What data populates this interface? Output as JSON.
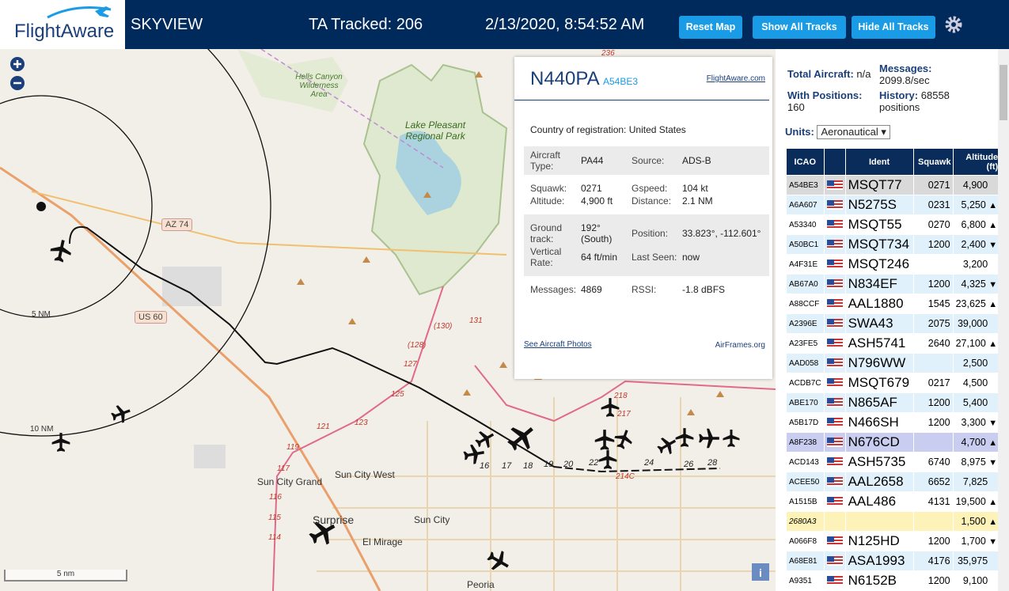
{
  "header": {
    "logo": "FlightAware",
    "title": "SKYVIEW",
    "tracked": "TA Tracked: 206",
    "datetime": "2/13/2020, 8:54:52 AM",
    "buttons": [
      "Reset Map",
      "Show All Tracks",
      "Hide All Tracks"
    ]
  },
  "map": {
    "labels": [
      "Hells Canyon Wilderness Area",
      "Lake Pleasant Regional Park",
      "AZ 74",
      "US 60",
      "5 NM",
      "10 NM",
      "Sun City Grand",
      "Sun City West",
      "Sun City",
      "Surprise",
      "El Mirage",
      "Peoria"
    ],
    "roads": [
      "236",
      "(130)",
      "131",
      "(128)",
      "127",
      "125",
      "123",
      "121",
      "119",
      "117",
      "116",
      "115",
      "114",
      "218",
      "217",
      "16",
      "17",
      "18",
      "19",
      "20",
      "22",
      "24",
      "26",
      "28",
      "214C"
    ],
    "scale": "5 nm"
  },
  "popup": {
    "callsign": "N440PA",
    "icao": "A54BE3",
    "link": "FlightAware.com",
    "country_label": "Country of registration:",
    "country": "United States",
    "sections": [
      [
        [
          {
            "label": "Aircraft Type:",
            "value": "PA44"
          },
          {
            "label": "Source:",
            "value": "ADS-B"
          }
        ]
      ],
      [
        [
          {
            "label": "Squawk:",
            "value": "0271"
          },
          {
            "label": "Gspeed:",
            "value": "104 kt"
          }
        ],
        [
          {
            "label": "Altitude:",
            "value": "4,900 ft"
          },
          {
            "label": "Distance:",
            "value": "2.1 NM"
          }
        ]
      ],
      [
        [
          {
            "label": "Ground track:",
            "value": "192° (South)"
          },
          {
            "label": "Position:",
            "value": "33.823°, -112.601°"
          }
        ],
        [
          {
            "label": "Vertical Rate:",
            "value": "64 ft/min"
          },
          {
            "label": "Last Seen:",
            "value": "now"
          }
        ]
      ],
      [
        [
          {
            "label": "Messages:",
            "value": "4869"
          },
          {
            "label": "RSSI:",
            "value": "-1.8 dBFS"
          }
        ]
      ]
    ],
    "photos_link": "See Aircraft Photos",
    "airframes_link": "AirFrames.org"
  },
  "stats": {
    "total_label": "Total Aircraft:",
    "total": "n/a",
    "messages_label": "Messages:",
    "messages": "2099.8/sec",
    "positions_label": "With Positions:",
    "positions": "160",
    "history_label": "History:",
    "history": "68558 positions",
    "units_label": "Units:",
    "units": "Aeronautical"
  },
  "table": {
    "headers": [
      "ICAO",
      "Ident",
      "Squawk",
      "Altitude (ft)"
    ],
    "rows": [
      {
        "icao": "A54BE3",
        "ident": "MSQT77",
        "squawk": "0271",
        "altitude": "4,900"
      },
      {
        "icao": "A6A607",
        "ident": "N5275S",
        "squawk": "0231",
        "altitude": "5,250",
        "trend": "▲"
      },
      {
        "icao": "A53340",
        "ident": "MSQT55",
        "squawk": "0270",
        "altitude": "6,800",
        "trend": "▲"
      },
      {
        "icao": "A50BC1",
        "ident": "MSQT734",
        "squawk": "1200",
        "altitude": "2,400",
        "trend": "▼"
      },
      {
        "icao": "A4F31E",
        "ident": "MSQT246",
        "altitude": "3,200"
      },
      {
        "icao": "AB67A0",
        "ident": "N834EF",
        "squawk": "1200",
        "altitude": "4,325",
        "trend": "▼"
      },
      {
        "icao": "A88CCF",
        "ident": "AAL1880",
        "squawk": "1545",
        "altitude": "23,625",
        "trend": "▲"
      },
      {
        "icao": "A2396E",
        "ident": "SWA43",
        "squawk": "2075",
        "altitude": "39,000"
      },
      {
        "icao": "A23FE5",
        "ident": "ASH5741",
        "squawk": "2640",
        "altitude": "27,100",
        "trend": "▲"
      },
      {
        "icao": "AAD058",
        "ident": "N796WW",
        "altitude": "2,500"
      },
      {
        "icao": "ACDB7C",
        "ident": "MSQT679",
        "squawk": "0217",
        "altitude": "4,500"
      },
      {
        "icao": "ABE170",
        "ident": "N865AF",
        "squawk": "1200",
        "altitude": "5,400"
      },
      {
        "icao": "A5B17D",
        "ident": "N466SH",
        "squawk": "1200",
        "altitude": "3,300",
        "trend": "▼"
      },
      {
        "icao": "A8F238",
        "ident": "N676CD",
        "altitude": "4,700",
        "trend": "▲"
      },
      {
        "icao": "ACD143",
        "ident": "ASH5735",
        "squawk": "6740",
        "altitude": "8,975",
        "trend": "▼"
      },
      {
        "icao": "ACEE50",
        "ident": "AAL2658",
        "squawk": "6652",
        "altitude": "7,825"
      },
      {
        "icao": "A1515B",
        "ident": "AAL486",
        "squawk": "4131",
        "altitude": "19,500",
        "trend": "▲"
      },
      {
        "icao": "2680A3",
        "altitude": "1,500",
        "trend": "▲"
      },
      {
        "icao": "A066F8",
        "ident": "N125HD",
        "squawk": "1200",
        "altitude": "1,700",
        "trend": "▼"
      },
      {
        "icao": "A68E81",
        "ident": "ASA1993",
        "squawk": "4176",
        "altitude": "35,975"
      },
      {
        "icao": "A9351",
        "ident": "N6152B",
        "squawk": "1200",
        "altitude": "9,100"
      }
    ]
  }
}
